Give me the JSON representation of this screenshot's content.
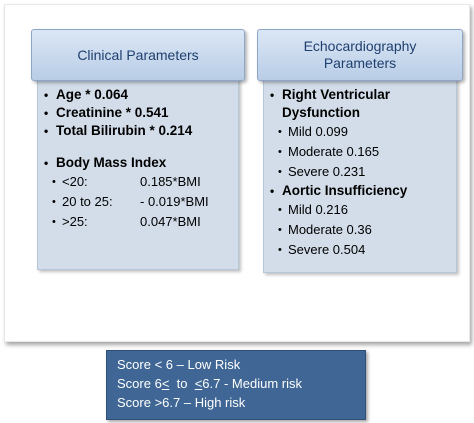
{
  "clinical": {
    "title": "Clinical Parameters",
    "items": [
      "Age * 0.064",
      "Creatinine * 0.541",
      "Total Bilirubin * 0.214"
    ],
    "bmi_title": "Body Mass Index",
    "bmi": [
      {
        "range": "<20:",
        "value": "0.185*BMI"
      },
      {
        "range": "20 to 25:",
        "value": "- 0.019*BMI"
      },
      {
        "range": ">25:",
        "value": "0.047*BMI"
      }
    ]
  },
  "echo": {
    "title": "Echocardiography\nParameters",
    "rv_title": "Right Ventricular Dysfunction",
    "rv": [
      "Mild 0.099",
      "Moderate 0.165",
      "Severe 0.231"
    ],
    "ai_title": "Aortic Insufficiency",
    "ai": [
      "Mild 0.216",
      "Moderate 0.36",
      "Severe 0.504"
    ]
  },
  "score": {
    "low": "Score < 6 – Low Risk",
    "medium_a": "Score 6",
    "medium_b": "<",
    "medium_c": "  to  ",
    "medium_d": "<",
    "medium_e": "6.7  - Medium risk",
    "high": "Score >6.7 – High risk"
  },
  "colors": {
    "header_text": "#1f3f6f",
    "panel": "#d3dde9",
    "score_box": "#3f6694"
  }
}
